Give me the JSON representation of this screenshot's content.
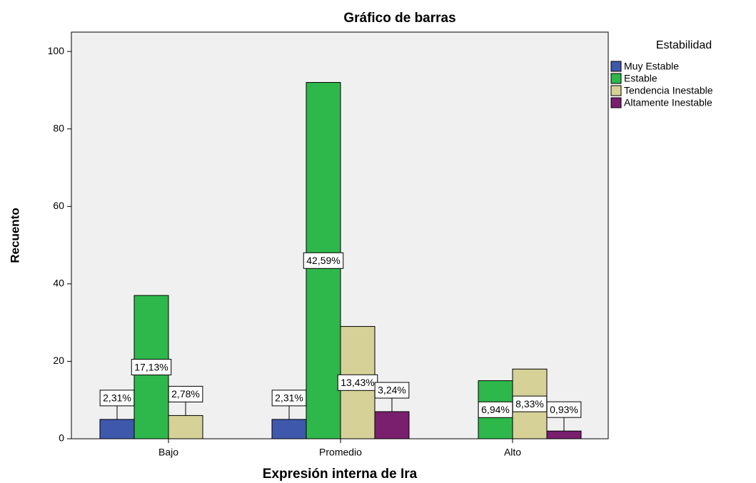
{
  "chart_data": {
    "type": "bar",
    "title": "Gráfico de barras",
    "x_label": "Expresión interna de Ira",
    "y_label": "Recuento",
    "legend_title": "Estabilidad",
    "legend_position": "right",
    "categories": [
      "Bajo",
      "Promedio",
      "Alto"
    ],
    "series": [
      {
        "name": "Muy Estable",
        "color": "#3e58ac",
        "values": [
          5,
          5,
          0
        ],
        "percent_labels": [
          "2,31%",
          "2,31%",
          null
        ]
      },
      {
        "name": "Estable",
        "color": "#2eb84b",
        "values": [
          37,
          92,
          15
        ],
        "percent_labels": [
          "17,13%",
          "42,59%",
          "6,94%"
        ]
      },
      {
        "name": "Tendencia Inestable",
        "color": "#d6d197",
        "values": [
          6,
          29,
          18
        ],
        "percent_labels": [
          "2,78%",
          "13,43%",
          "8,33%"
        ]
      },
      {
        "name": "Altamente Inestable",
        "color": "#7a1f6e",
        "values": [
          0,
          7,
          2
        ],
        "percent_labels": [
          null,
          "3,24%",
          "0,93%"
        ]
      }
    ],
    "ylim": [
      0,
      105
    ],
    "yticks": [
      0,
      20,
      40,
      60,
      80,
      100
    ]
  }
}
